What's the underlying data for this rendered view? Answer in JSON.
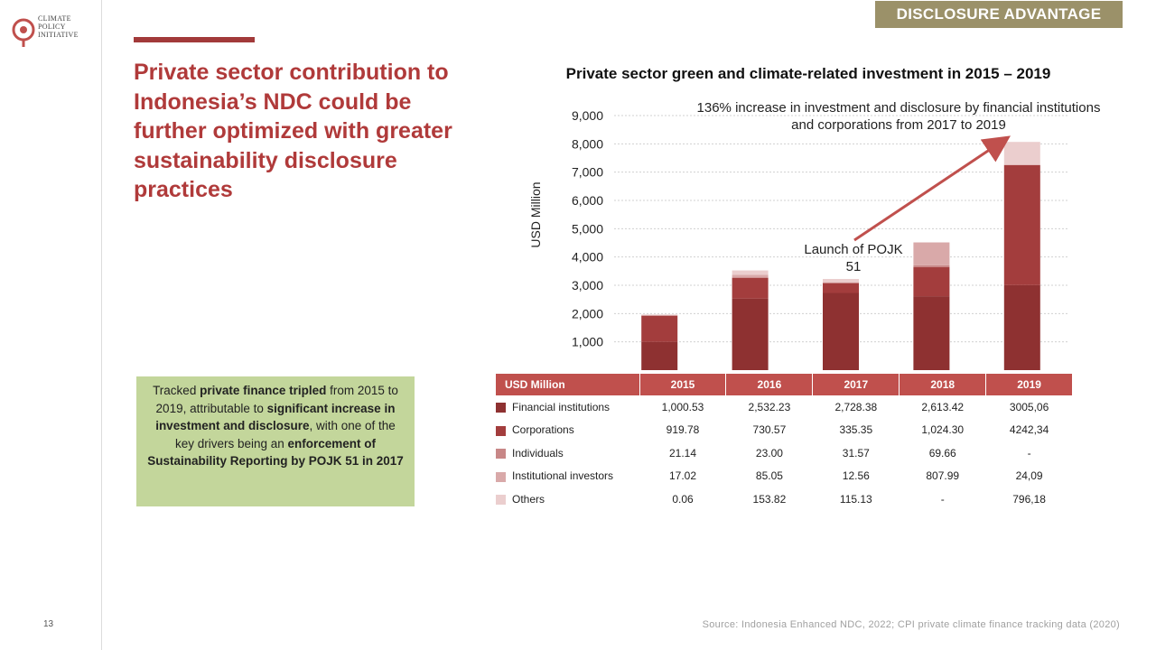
{
  "logo": {
    "lines": "CLIMATE\nPOLICY\nINITIATIVE"
  },
  "page_number": "13",
  "badge": "DISCLOSURE ADVANTAGE",
  "headline": "Private sector contribution to Indonesia’s NDC could be further optimized with greater sustainability disclosure practices",
  "callout": {
    "t1": "Tracked ",
    "b1": "private finance tripled",
    "t2": " from 2015 to 2019, attributable to ",
    "b2": "significant increase in investment and disclosure",
    "t3": ", with one of the key drivers being an ",
    "b3": "enforcement of Sustainability Reporting by POJK 51 in 2017"
  },
  "annotation": "136% increase in investment and disclosure by financial institutions and corporations from 2017 to 2019",
  "launch_label": "Launch of POJK 51",
  "source": "Source: Indonesia Enhanced NDC, 2022; CPI private climate finance tracking data (2020)",
  "colors": {
    "Financial institutions": "#8e3131",
    "Corporations": "#a33d3d",
    "Individuals": "#c88787",
    "Institutional investors": "#d9a9a9",
    "Others": "#ebcece",
    "arrow": "#c0504d",
    "header": "#c0504d"
  },
  "table": {
    "header": [
      "USD Million",
      "2015",
      "2016",
      "2017",
      "2018",
      "2019"
    ],
    "rows": [
      [
        "Financial institutions",
        "1,000.53",
        "2,532.23",
        "2,728.38",
        "2,613.42",
        "3005,06"
      ],
      [
        "Corporations",
        "919.78",
        "730.57",
        "335.35",
        "1,024.30",
        "4242,34"
      ],
      [
        "Individuals",
        "21.14",
        "23.00",
        "31.57",
        "69.66",
        "-"
      ],
      [
        "Institutional investors",
        "17.02",
        "85.05",
        "12.56",
        "807.99",
        "24,09"
      ],
      [
        "Others",
        "0.06",
        "153.82",
        "115.13",
        "-",
        "796,18"
      ]
    ]
  },
  "chart_data": {
    "type": "bar",
    "stacked": true,
    "title": "Private sector green and climate-related investment in 2015 – 2019",
    "ylabel": "USD Million",
    "xlabel": "",
    "categories": [
      "2015",
      "2016",
      "2017",
      "2018",
      "2019"
    ],
    "ylim": [
      0,
      9000
    ],
    "yticks": [
      1000,
      2000,
      3000,
      4000,
      5000,
      6000,
      7000,
      8000,
      9000
    ],
    "ytick_labels": [
      "1,000",
      "2,000",
      "3,000",
      "4,000",
      "5,000",
      "6,000",
      "7,000",
      "8,000",
      "9,000"
    ],
    "grid": true,
    "series": [
      {
        "name": "Financial institutions",
        "values": [
          1000.53,
          2532.23,
          2728.38,
          2613.42,
          3005.06
        ]
      },
      {
        "name": "Corporations",
        "values": [
          919.78,
          730.57,
          335.35,
          1024.3,
          4242.34
        ]
      },
      {
        "name": "Individuals",
        "values": [
          21.14,
          23.0,
          31.57,
          69.66,
          0
        ]
      },
      {
        "name": "Institutional investors",
        "values": [
          17.02,
          85.05,
          12.56,
          807.99,
          24.09
        ]
      },
      {
        "name": "Others",
        "values": [
          0.06,
          153.82,
          115.13,
          0,
          796.18
        ]
      }
    ]
  }
}
